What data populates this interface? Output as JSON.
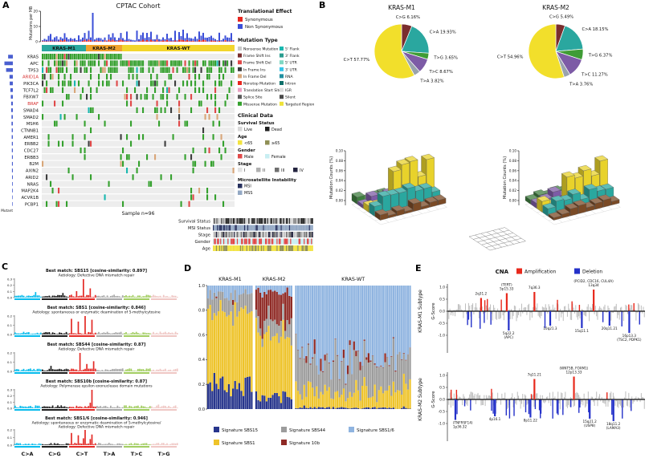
{
  "labels": {
    "a": "A",
    "b": "B",
    "c": "C",
    "d": "D",
    "e": "E"
  },
  "panel_a": {
    "title": "CPTAC Cohort",
    "y_axis_label": "Mutations per MB",
    "y_ticks": [
      "20",
      "10",
      "0"
    ],
    "groups": [
      {
        "label": "KRAS-M1",
        "color": "#2aa79f",
        "count": 22
      },
      {
        "label": "KRAS-M2",
        "color": "#f0a22e",
        "count": 18
      },
      {
        "label": "KRAS-WT",
        "color": "#f2d52c",
        "count": 56
      }
    ],
    "sample_label": "Sample n=96",
    "pct_mutant_label": "% Mutant",
    "genes": [
      {
        "name": "KRAS",
        "pct": 42,
        "red": false
      },
      {
        "name": "APC",
        "pct": 75,
        "red": false
      },
      {
        "name": "TP53",
        "pct": 60,
        "red": false
      },
      {
        "name": "ARID1A",
        "pct": 30,
        "red": true
      },
      {
        "name": "PIK3CA",
        "pct": 28,
        "red": false
      },
      {
        "name": "TCF7L2",
        "pct": 22,
        "red": false
      },
      {
        "name": "FBXW7",
        "pct": 18,
        "red": false
      },
      {
        "name": "BRAF",
        "pct": 15,
        "red": true
      },
      {
        "name": "SMAD4",
        "pct": 15,
        "red": false
      },
      {
        "name": "SMAD2",
        "pct": 12,
        "red": false
      },
      {
        "name": "MSH6",
        "pct": 12,
        "red": false
      },
      {
        "name": "CTNNB1",
        "pct": 10,
        "red": false
      },
      {
        "name": "AMER1",
        "pct": 10,
        "red": false
      },
      {
        "name": "ERBB2",
        "pct": 9,
        "red": false
      },
      {
        "name": "CDC27",
        "pct": 9,
        "red": false
      },
      {
        "name": "ERBB3",
        "pct": 8,
        "red": false
      },
      {
        "name": "B2M",
        "pct": 8,
        "red": false
      },
      {
        "name": "AXIN2",
        "pct": 8,
        "red": false
      },
      {
        "name": "ARID2",
        "pct": 7,
        "red": false
      },
      {
        "name": "NRAS",
        "pct": 6,
        "red": false
      },
      {
        "name": "MAP2K4",
        "pct": 6,
        "red": false
      },
      {
        "name": "ACVR1B",
        "pct": 5,
        "red": false
      },
      {
        "name": "PCBP1",
        "pct": 5,
        "red": false
      }
    ],
    "legend_translational": {
      "title": "Translational Effect",
      "items": [
        {
          "label": "Synonymous",
          "color": "#e8261f"
        },
        {
          "label": "Non Synonymous",
          "color": "#3b4fd8"
        }
      ]
    },
    "legend_mutation_type": {
      "title": "Mutation Type",
      "items": [
        {
          "label": "Nonsense Mutation",
          "color": "#c9c9c9"
        },
        {
          "label": "Frame Shift Ins",
          "color": "#7a2e2e"
        },
        {
          "label": "Frame Shift Del",
          "color": "#e04848"
        },
        {
          "label": "In Frame Ins",
          "color": "#3d3d3d"
        },
        {
          "label": "In Frame Del",
          "color": "#d9a679"
        },
        {
          "label": "Nonstop Mutation",
          "color": "#e8261f"
        },
        {
          "label": "Translation Start Site",
          "color": "#e9a0c2"
        },
        {
          "label": "Splice Site",
          "color": "#5a5a5a"
        },
        {
          "label": "Missense Mutation",
          "color": "#35a12e"
        },
        {
          "label": "5' Flank",
          "color": "#19b8b0"
        },
        {
          "label": "3' Flank",
          "color": "#2a9d8f"
        },
        {
          "label": "5' UTR",
          "color": "#7fd8c4"
        },
        {
          "label": "3' UTR",
          "color": "#35c4e8"
        },
        {
          "label": "RNA",
          "color": "#1f8f9f"
        },
        {
          "label": "Intron",
          "color": "#0f6f6a"
        },
        {
          "label": "IGR",
          "color": "#dcdcdc"
        },
        {
          "label": "Silent",
          "color": "#4a4a4a"
        },
        {
          "label": "Targeted Region",
          "color": "#efe33a"
        }
      ]
    },
    "legend_clinical": {
      "title": "Clinical Data",
      "sections": [
        {
          "title": "Survival Status",
          "items": [
            {
              "label": "Live",
              "color": "#d9d9d9"
            },
            {
              "label": "Dead",
              "color": "#1f1f1f"
            }
          ]
        },
        {
          "title": "Age",
          "items": [
            {
              "label": "<65",
              "color": "#f2e340"
            },
            {
              "label": "≥65",
              "color": "#8f8f55"
            }
          ]
        },
        {
          "title": "Gender",
          "items": [
            {
              "label": "Male",
              "color": "#e04848"
            },
            {
              "label": "Female",
              "color": "#c8eef2"
            }
          ]
        },
        {
          "title": "Stage",
          "items": [
            {
              "label": "I",
              "color": "#e3e3e3"
            },
            {
              "label": "II",
              "color": "#b0b0b0"
            },
            {
              "label": "III",
              "color": "#6f6f6f"
            },
            {
              "label": "IV",
              "color": "#23233f"
            }
          ]
        },
        {
          "title": "Microsatellite Instability",
          "items": [
            {
              "label": "MSI",
              "color": "#27315e"
            },
            {
              "label": "MSS",
              "color": "#93a8c4"
            }
          ]
        }
      ]
    },
    "clinical_rows": [
      "Survival Status",
      "MSI Status",
      "Stage",
      "Gender",
      "Age"
    ]
  },
  "panel_b": {
    "pies": [
      {
        "title": "KRAS-M1",
        "slices": [
          {
            "label": "C>G",
            "pct": 6.16,
            "color": "#7a2e2e"
          },
          {
            "label": "C>A",
            "pct": 19.93,
            "color": "#2aa79f"
          },
          {
            "label": "T>G",
            "pct": 3.65,
            "color": "#3f9c35"
          },
          {
            "label": "T>C",
            "pct": 8.67,
            "color": "#7d5ba6"
          },
          {
            "label": "T>A",
            "pct": 3.82,
            "color": "#9aa3ad"
          },
          {
            "label": "C>T",
            "pct": 57.77,
            "color": "#f2df2b"
          }
        ]
      },
      {
        "title": "KRAS-M2",
        "slices": [
          {
            "label": "C>G",
            "pct": 5.49,
            "color": "#7a2e2e"
          },
          {
            "label": "C>A",
            "pct": 18.15,
            "color": "#2aa79f"
          },
          {
            "label": "T>G",
            "pct": 6.37,
            "color": "#3f9c35"
          },
          {
            "label": "T>C",
            "pct": 11.27,
            "color": "#7d5ba6"
          },
          {
            "label": "T>A",
            "pct": 3.76,
            "color": "#9aa3ad"
          },
          {
            "label": "C>T",
            "pct": 54.96,
            "color": "#f2df2b"
          }
        ]
      }
    ],
    "bar3d": {
      "z_label": "Mutation Counts (%)",
      "z_ticks": [
        "0.10",
        "0.08",
        "0.06",
        "0.04",
        "0.02",
        "0.00"
      ],
      "row_colors": [
        "#3f7f3f",
        "#7d5ba6",
        "#e8d22b",
        "#2aa79f",
        "#7a4a26"
      ]
    }
  },
  "panel_c": {
    "x_labels": [
      "C>A",
      "C>G",
      "C>T",
      "T>A",
      "T>C",
      "T>G"
    ],
    "block_colors": [
      "#04bbec",
      "#1c1c1c",
      "#e32a26",
      "#a8a8a8",
      "#a2cd61",
      "#efc7c4"
    ],
    "plots": [
      {
        "best_match": "Best match: SBS15 [cosine-similarity: 0.897]",
        "aetiology": "Aetiology: Defective DNA mismatch repair",
        "y_ticks": [
          "0.3",
          "0.2",
          "0.1",
          "0.0"
        ],
        "seed": 11,
        "spikes": [
          [
            40,
            1.0
          ],
          [
            44,
            0.5
          ],
          [
            12,
            0.3
          ],
          [
            28,
            0.25
          ],
          [
            36,
            0.35
          ]
        ]
      },
      {
        "best_match": "Best match: SBS1 [cosine-similarity: 0.846]",
        "aetiology": "Aetiology: spontaneous or enzymatic deamination of 5-methylcytosine",
        "y_ticks": [
          "0.2",
          "0.1",
          "0.0"
        ],
        "seed": 22,
        "spikes": [
          [
            33,
            0.85
          ],
          [
            37,
            0.7
          ],
          [
            41,
            1.0
          ],
          [
            45,
            0.8
          ]
        ]
      },
      {
        "best_match": "Best match: SBS44 [cosine-similarity: 0.87]",
        "aetiology": "Aetiology: Defective DNA mismatch repair",
        "y_ticks": [
          "0.2",
          "0.1",
          "0.0"
        ],
        "seed": 33,
        "spikes": [
          [
            38,
            1.0
          ],
          [
            46,
            0.55
          ],
          [
            21,
            0.3
          ],
          [
            42,
            0.4
          ]
        ]
      },
      {
        "best_match": "Best match: SBS10b [cosine-similarity: 0.87]",
        "aetiology": "Aetiology: Polymerase epsilon exonuclease domain mutations",
        "y_ticks": [
          "0.3",
          "0.2",
          "0.1",
          "0.0"
        ],
        "seed": 44,
        "spikes": [
          [
            45,
            1.0
          ],
          [
            44,
            0.3
          ],
          [
            84,
            0.2
          ]
        ]
      },
      {
        "best_match": "Best match: SBS1/6 [cosine-similarity: 0.946]",
        "aetiology": "Aetiology: spontaneous or enzymatic deamination of 5-methylcytosine/",
        "aetiology2": "Aetiology: Defective DNA mismatch repair",
        "y_ticks": [
          "0.2",
          "0.1",
          "0.0"
        ],
        "seed": 55,
        "spikes": [
          [
            33,
            0.8
          ],
          [
            37,
            0.65
          ],
          [
            41,
            1.0
          ],
          [
            45,
            0.7
          ],
          [
            40,
            0.45
          ],
          [
            44,
            0.4
          ]
        ]
      }
    ]
  },
  "panel_d": {
    "y_ticks": [
      "1.0",
      "0.8",
      "0.6",
      "0.4",
      "0.2",
      "0.0"
    ],
    "group_labels": [
      "KRAS-M1",
      "KRAS-M2",
      "KRAS-WT"
    ],
    "group_counts": [
      22,
      18,
      56
    ],
    "legend": [
      {
        "label": "Signature SBS15",
        "color": "#27358c"
      },
      {
        "label": "Signature SBS1",
        "color": "#eec32a"
      },
      {
        "label": "Signature SBS44",
        "color": "#9c9c9c"
      },
      {
        "label": "Signature 10b",
        "color": "#8f2a25"
      },
      {
        "label": "Signature SBS1/6",
        "color": "#8fb4e0"
      }
    ]
  },
  "panel_e": {
    "title": "CNA",
    "legend": [
      {
        "label": "Amplification",
        "color": "#e8291c"
      },
      {
        "label": "Deletion",
        "color": "#2431c9"
      }
    ],
    "y_label": "G-Score",
    "plots": [
      {
        "subtype": "KRAS-M1 Subtype",
        "y_ticks": [
          "1.0",
          "0.5",
          "0.0",
          "-0.5",
          "-1.0"
        ],
        "amps": [
          {
            "text": "2q31.2",
            "x": 0.17,
            "h": 0.55
          },
          {
            "text": "(TERT)",
            "text2": "5p15.33",
            "x": 0.3,
            "h": 0.75
          },
          {
            "text": "7q36.3",
            "x": 0.44,
            "h": 0.8
          },
          {
            "text": "(PCID2, CDC16, CUL4A)",
            "text2": "13q34",
            "x": 0.74,
            "h": 0.9
          }
        ],
        "dels": [
          {
            "text": "5q22.2",
            "text2": "(APC)",
            "x": 0.31,
            "d": 0.8
          },
          {
            "text": "10q21.3",
            "x": 0.52,
            "d": 0.6
          },
          {
            "text": "15q11.1",
            "x": 0.68,
            "d": 0.7
          },
          {
            "text": "20q11.21",
            "x": 0.82,
            "d": 0.6
          },
          {
            "text": "16p13.3",
            "text2": "(TSC2, PDPK1)",
            "x": 0.92,
            "d": 0.9
          }
        ]
      },
      {
        "subtype": "KRAS-M2 Subtype",
        "y_ticks": [
          "1.0",
          "0.5",
          "0.0",
          "-0.5",
          "-1.0"
        ],
        "amps": [
          {
            "text": "7q11.21",
            "x": 0.44,
            "h": 0.85
          },
          {
            "text": "(WNT5B, FOXM1)",
            "text2": "12p13.33",
            "x": 0.64,
            "h": 0.95
          }
        ],
        "dels": [
          {
            "text": "(TNFRSF14)",
            "text2": "1p36.32",
            "x": 0.04,
            "d": 0.85
          },
          {
            "text": "4p16.1",
            "x": 0.24,
            "d": 0.7
          },
          {
            "text": "8p11.22",
            "x": 0.42,
            "d": 0.75
          },
          {
            "text": "15q21.2",
            "text2": "(USP8)",
            "x": 0.72,
            "d": 0.8
          },
          {
            "text": "18q11.2",
            "text2": "(LAMA3)",
            "x": 0.84,
            "d": 0.9
          }
        ]
      }
    ]
  }
}
